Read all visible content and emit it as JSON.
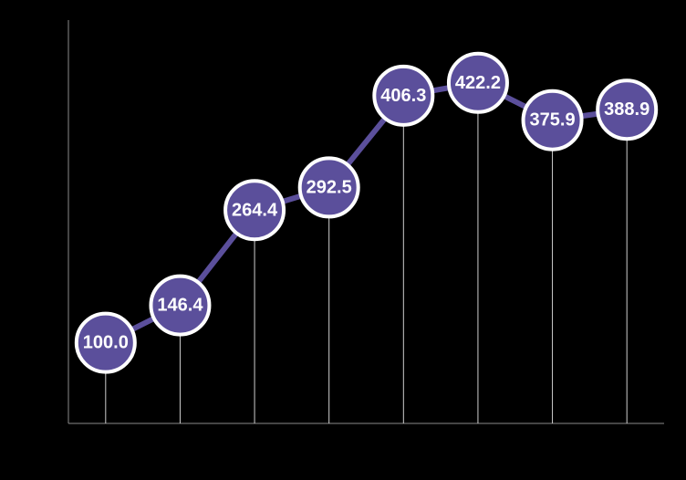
{
  "chart_data": {
    "type": "line",
    "categories": [
      null,
      null,
      null,
      null,
      null,
      null,
      null,
      null
    ],
    "values": [
      100,
      146.4,
      264.4,
      292.5,
      406.3,
      422.2,
      375.9,
      388.9
    ],
    "value_labels": [
      "100.0",
      "146.4",
      "264.4",
      "292.5",
      "406.3",
      "422.2",
      "375.9",
      "388.9"
    ],
    "color": "#5b4f9b",
    "ylim": [
      0,
      500
    ]
  }
}
